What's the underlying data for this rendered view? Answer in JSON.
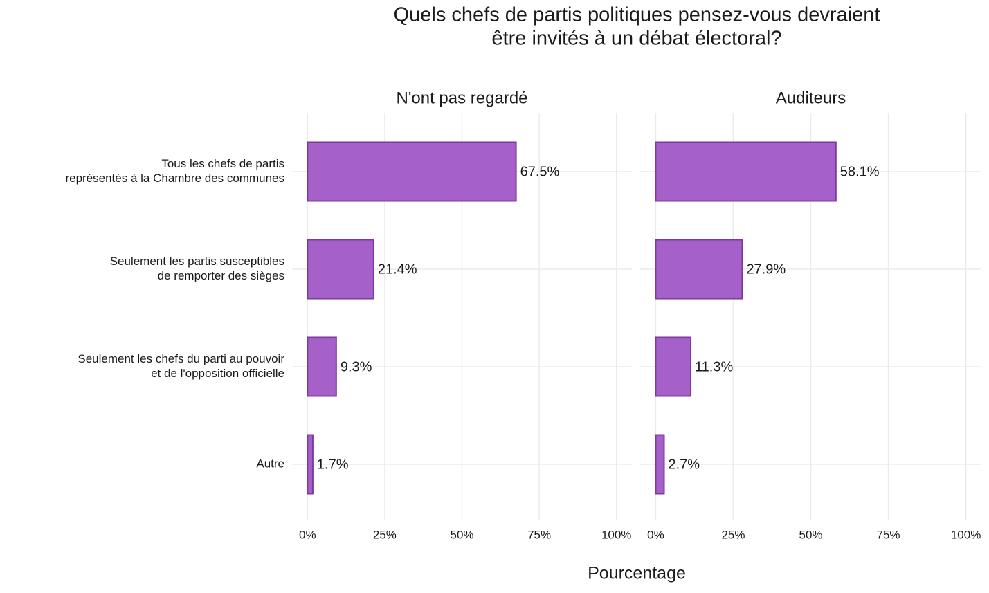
{
  "title": [
    "Quels chefs de partis politiques pensez-vous devraient",
    "être invités à un débat électoral?"
  ],
  "x_label": "Pourcentage",
  "chart_data": {
    "type": "bar",
    "orientation": "horizontal",
    "facets": true,
    "categories": [
      [
        "Tous les chefs de partis",
        "représentés à la Chambre des communes"
      ],
      [
        "Seulement les partis susceptibles",
        "de remporter des sièges"
      ],
      [
        "Seulement les chefs du parti au pouvoir",
        "et de l'opposition officielle"
      ],
      [
        "Autre"
      ]
    ],
    "series": [
      {
        "name": "N'ont pas regardé",
        "color": "#a560c9",
        "values": [
          67.5,
          21.4,
          9.3,
          1.7
        ],
        "value_labels": [
          "67.5%",
          "21.4%",
          "9.3%",
          "1.7%"
        ]
      },
      {
        "name": "Auditeurs",
        "color": "#a560c9",
        "values": [
          58.1,
          27.9,
          11.3,
          2.7
        ],
        "value_labels": [
          "58.1%",
          "27.9%",
          "11.3%",
          "2.7%"
        ]
      }
    ],
    "edge_color": "#7b3a9e",
    "xlim": [
      -5,
      105
    ],
    "xticks": [
      {
        "value": 0,
        "label": "0%"
      },
      {
        "value": 25,
        "label": "25%"
      },
      {
        "value": 50,
        "label": "50%"
      },
      {
        "value": 75,
        "label": "75%"
      },
      {
        "value": 100,
        "label": "100%"
      }
    ],
    "grid": true
  }
}
